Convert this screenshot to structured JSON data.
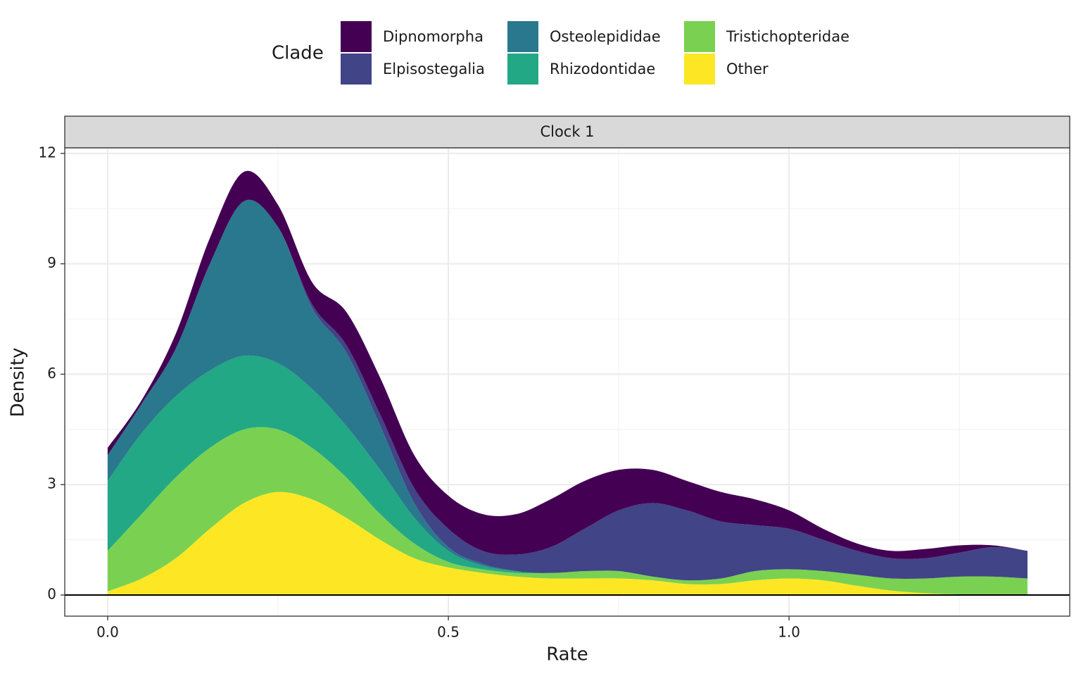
{
  "chart_data": {
    "type": "stacked-density",
    "facet": "Clock 1",
    "x_label": "Rate",
    "y_label": "Density",
    "legend_title": "Clade",
    "legend_position": "top",
    "grid": true,
    "x": [
      0,
      0.05,
      0.1,
      0.15,
      0.2,
      0.25,
      0.3,
      0.35,
      0.4,
      0.45,
      0.5,
      0.55,
      0.6,
      0.65,
      0.7,
      0.75,
      0.8,
      0.85,
      0.9,
      0.95,
      1.0,
      1.05,
      1.1,
      1.15,
      1.2,
      1.25,
      1.3,
      1.35
    ],
    "series": [
      {
        "name": "Dipnomorpha",
        "color": "#440154",
        "values": [
          0.2,
          0.1,
          0.4,
          0.7,
          0.8,
          0.6,
          0.6,
          0.9,
          1.0,
          0.9,
          0.9,
          1.0,
          1.1,
          1.3,
          1.3,
          1.1,
          0.9,
          0.8,
          0.8,
          0.7,
          0.5,
          0.3,
          0.2,
          0.2,
          0.25,
          0.2,
          0.05,
          0
        ]
      },
      {
        "name": "Elpisostegalia",
        "color": "#414487",
        "values": [
          0,
          0,
          0,
          0,
          0,
          0,
          0.1,
          0.2,
          0.3,
          0.4,
          0.5,
          0.35,
          0.45,
          0.7,
          1.15,
          1.65,
          2.0,
          1.9,
          1.55,
          1.25,
          1.1,
          0.85,
          0.65,
          0.55,
          0.55,
          0.65,
          0.8,
          0.75
        ]
      },
      {
        "name": "Osteolepididae",
        "color": "#2A788E",
        "values": [
          0.7,
          0.8,
          1.3,
          2.9,
          4.2,
          3.7,
          2.2,
          2.0,
          1.2,
          0.4,
          0.1,
          0.05,
          0,
          0,
          0,
          0,
          0,
          0,
          0,
          0,
          0,
          0,
          0,
          0,
          0,
          0,
          0,
          0
        ]
      },
      {
        "name": "Rhizodontidae",
        "color": "#22A884",
        "values": [
          1.9,
          2.2,
          2.2,
          2.1,
          2.0,
          1.8,
          1.6,
          1.4,
          1.2,
          0.7,
          0.3,
          0.1,
          0.05,
          0,
          0,
          0,
          0,
          0,
          0,
          0,
          0,
          0,
          0,
          0,
          0,
          0,
          0,
          0
        ]
      },
      {
        "name": "Tristichopteridae",
        "color": "#7AD151",
        "values": [
          1.1,
          1.75,
          2.2,
          2.2,
          2.0,
          1.7,
          1.4,
          1.1,
          0.7,
          0.4,
          0.15,
          0.1,
          0.1,
          0.15,
          0.2,
          0.2,
          0.1,
          0.1,
          0.15,
          0.25,
          0.25,
          0.25,
          0.3,
          0.33,
          0.4,
          0.48,
          0.49,
          0.44
        ]
      },
      {
        "name": "Other",
        "color": "#FDE725",
        "values": [
          0.1,
          0.45,
          1.0,
          1.8,
          2.5,
          2.8,
          2.6,
          2.1,
          1.5,
          1.0,
          0.75,
          0.6,
          0.5,
          0.45,
          0.45,
          0.45,
          0.4,
          0.3,
          0.3,
          0.4,
          0.45,
          0.4,
          0.25,
          0.12,
          0.05,
          0.02,
          0.01,
          0.01
        ]
      }
    ],
    "xlim": [
      -0.063,
      1.412
    ],
    "ylim": [
      -0.574,
      12.15
    ],
    "xticks": [
      {
        "value": 0,
        "label": "0.0"
      },
      0.5,
      {
        "value": 1,
        "label": "1.0"
      }
    ],
    "yticks": [
      0,
      3,
      6,
      9,
      12
    ]
  }
}
